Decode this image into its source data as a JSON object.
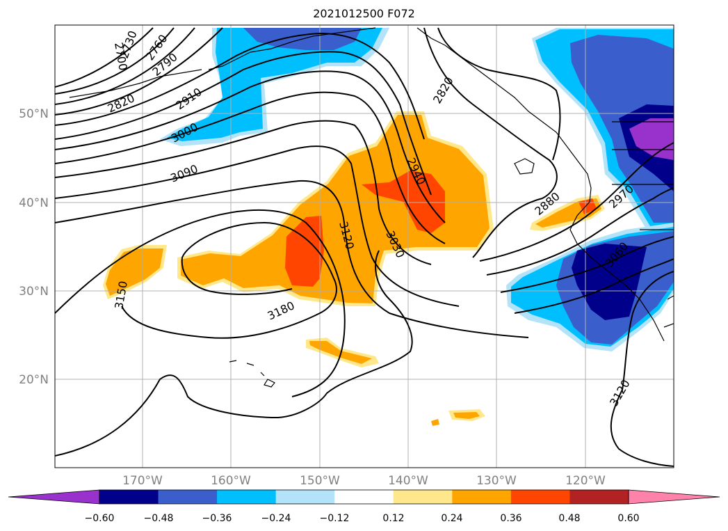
{
  "title": "2021012500 F072",
  "map": {
    "lon_labels": [
      "170°W",
      "160°W",
      "150°W",
      "140°W",
      "130°W",
      "120°W"
    ],
    "lat_labels": [
      "50°N",
      "40°N",
      "30°N",
      "20°N"
    ],
    "contour_labels": [
      "2700",
      "2730",
      "2760",
      "2790",
      "2820",
      "2910",
      "3000",
      "3090",
      "3150",
      "3180",
      "3120",
      "3030",
      "2940",
      "2820",
      "2880",
      "2970",
      "3060",
      "3120"
    ]
  },
  "colorbar": {
    "ticks": [
      "−0.60",
      "−0.48",
      "−0.36",
      "−0.24",
      "−0.12",
      "0.12",
      "0.24",
      "0.36",
      "0.48",
      "0.60"
    ],
    "colors": [
      "#9932cc",
      "#00008b",
      "#3a5fcd",
      "#00bfff",
      "#b2e3f8",
      "#ffffff",
      "#ffe88c",
      "#ffa500",
      "#ff4500",
      "#b22222",
      "#ff82ab"
    ]
  },
  "shading_colors": {
    "neg_light": "#b2e3f8",
    "neg_mid": "#00bfff",
    "neg_blue": "#3a5fcd",
    "neg_dark": "#00008b",
    "neg_purple": "#9932cc",
    "pos_light": "#ffe88c",
    "pos_orange": "#ffa500",
    "pos_red": "#ff4500"
  }
}
